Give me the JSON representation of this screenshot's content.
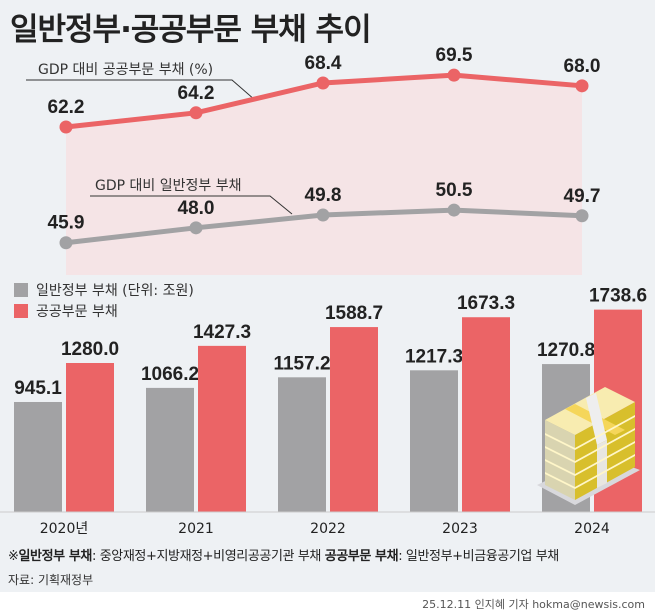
{
  "title": "일반정부·공공부문 부채 추이",
  "colors": {
    "public": "#eb6466",
    "general": "#a2a2a4",
    "background": "#eef1f4",
    "area": "#f6e1e2"
  },
  "chart_data": [
    {
      "type": "line",
      "categories": [
        "2020년",
        "2021",
        "2022",
        "2023",
        "2024"
      ],
      "series": [
        {
          "name": "GDP 대비 공공부문 부채 (%)",
          "values": [
            62.2,
            64.2,
            68.4,
            69.5,
            68.0
          ],
          "color": "#eb6466"
        },
        {
          "name": "GDP 대비 일반정부 부채",
          "values": [
            45.9,
            48.0,
            49.8,
            50.5,
            49.7
          ],
          "color": "#a2a2a4"
        }
      ]
    },
    {
      "type": "bar",
      "categories": [
        "2020년",
        "2021",
        "2022",
        "2023",
        "2024"
      ],
      "series": [
        {
          "name": "일반정부 부채 (단위: 조원)",
          "values": [
            945.1,
            1066.2,
            1157.2,
            1217.3,
            1270.8
          ],
          "color": "#a2a2a4"
        },
        {
          "name": "공공부문 부채",
          "values": [
            1280.0,
            1427.3,
            1588.7,
            1673.3,
            1738.6
          ],
          "color": "#eb6466"
        }
      ]
    }
  ],
  "footer": {
    "note_mark": "※",
    "note_term1": "일반정부 부채",
    "note_def1": ": 중앙재정+지방재정+비영리공공기관 부채 ",
    "note_term2": "공공부문 부채",
    "note_def2": ": 일반정부+비금융공기업 부채",
    "source": "자료: 기획재정부",
    "credit": "25.12.11 인지혜 기자 hokma@newsis.com"
  },
  "icon": "money-stack-icon"
}
